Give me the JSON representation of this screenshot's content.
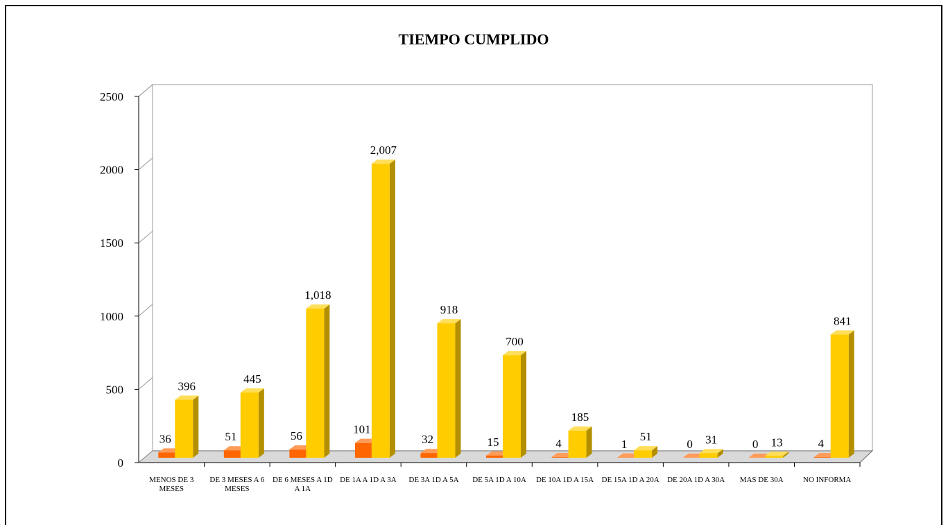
{
  "chart_data": {
    "type": "bar3d",
    "title": "TIEMPO CUMPLIDO",
    "categories": [
      "MENOS DE 3 MESES",
      "DE 3 MESES A 6 MESES",
      "DE 6 MESES A 1D A 1A",
      "DE 1A  A 1D A 3A",
      "DE 3A 1D A 5A",
      "DE 5A 1D A 10A",
      "DE 10A 1D A 15A",
      "DE 15A 1D A 20A",
      "DE 20A 1D A 30A",
      "MAS DE 30A",
      "NO INFORMA"
    ],
    "series": [
      {
        "color": "#ff6600",
        "values": [
          36,
          51,
          56,
          101,
          32,
          15,
          4,
          1,
          0,
          0,
          4
        ]
      },
      {
        "color": "#ffcc00",
        "values": [
          396,
          445,
          1018,
          2007,
          918,
          700,
          185,
          51,
          31,
          13,
          841
        ],
        "value_labels": [
          "396",
          "445",
          "1,018",
          "2,007",
          "918",
          "700",
          "185",
          "51",
          "31",
          "13",
          "841"
        ]
      }
    ],
    "ylim": [
      0,
      2500
    ],
    "yticks": [
      0,
      500,
      1000,
      1500,
      2000,
      2500
    ],
    "grid": false
  }
}
